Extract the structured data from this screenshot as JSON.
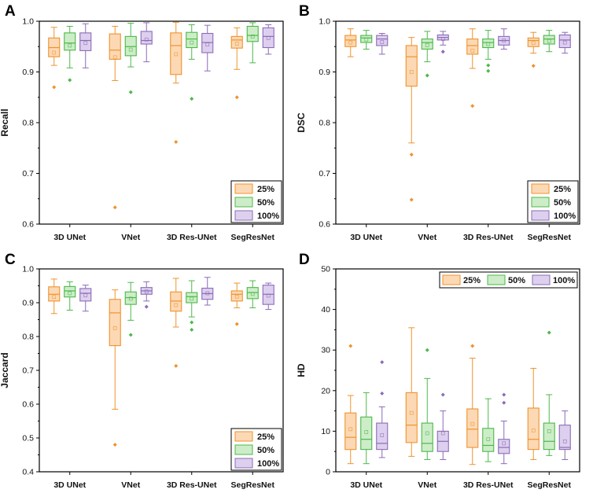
{
  "series_colors": {
    "25%": {
      "stroke": "#F0922E",
      "fill": "#FCD9B4"
    },
    "50%": {
      "stroke": "#4CB84A",
      "fill": "#CDEDC8"
    },
    "100%": {
      "stroke": "#8C6BB8",
      "fill": "#DDD0EE"
    }
  },
  "chart_data": [
    {
      "panel": "A",
      "type": "box",
      "ylabel": "Recall",
      "xlabel": "",
      "ylim": [
        0.6,
        1.0
      ],
      "yticks": [
        0.6,
        0.7,
        0.8,
        0.9,
        1.0
      ],
      "tick_format": "1",
      "categories": [
        "3D UNet",
        "VNet",
        "3D Res-UNet",
        "SegResNet"
      ],
      "legend_position": "bottom-right",
      "legend_layout": "vertical",
      "series": [
        {
          "name": "25%",
          "boxes": [
            {
              "min": 0.913,
              "q1": 0.93,
              "median": 0.948,
              "q3": 0.967,
              "max": 0.988,
              "mean": 0.938,
              "outliers": [
                0.87
              ]
            },
            {
              "min": 0.883,
              "q1": 0.925,
              "median": 0.943,
              "q3": 0.975,
              "max": 0.99,
              "mean": 0.929,
              "outliers": [
                0.633
              ]
            },
            {
              "min": 0.878,
              "q1": 0.895,
              "median": 0.952,
              "q3": 0.977,
              "max": 0.998,
              "mean": 0.935,
              "outliers": [
                0.762
              ]
            },
            {
              "min": 0.905,
              "q1": 0.947,
              "median": 0.963,
              "q3": 0.97,
              "max": 0.987,
              "mean": 0.956,
              "outliers": [
                0.85
              ]
            }
          ]
        },
        {
          "name": "50%",
          "boxes": [
            {
              "min": 0.908,
              "q1": 0.943,
              "median": 0.957,
              "q3": 0.977,
              "max": 0.99,
              "mean": 0.952,
              "outliers": [
                0.884
              ]
            },
            {
              "min": 0.91,
              "q1": 0.932,
              "median": 0.95,
              "q3": 0.97,
              "max": 0.996,
              "mean": 0.944,
              "outliers": [
                0.86
              ]
            },
            {
              "min": 0.925,
              "q1": 0.948,
              "median": 0.965,
              "q3": 0.978,
              "max": 0.993,
              "mean": 0.958,
              "outliers": [
                0.847
              ]
            },
            {
              "min": 0.918,
              "q1": 0.96,
              "median": 0.972,
              "q3": 0.99,
              "max": 0.997,
              "mean": 0.97,
              "outliers": []
            }
          ]
        },
        {
          "name": "100%",
          "boxes": [
            {
              "min": 0.908,
              "q1": 0.942,
              "median": 0.962,
              "q3": 0.977,
              "max": 0.995,
              "mean": 0.957,
              "outliers": []
            },
            {
              "min": 0.92,
              "q1": 0.955,
              "median": 0.962,
              "q3": 0.98,
              "max": 0.997,
              "mean": 0.964,
              "outliers": []
            },
            {
              "min": 0.902,
              "q1": 0.938,
              "median": 0.958,
              "q3": 0.976,
              "max": 0.992,
              "mean": 0.954,
              "outliers": []
            },
            {
              "min": 0.935,
              "q1": 0.948,
              "median": 0.97,
              "q3": 0.987,
              "max": 0.993,
              "mean": 0.967,
              "outliers": []
            }
          ]
        }
      ]
    },
    {
      "panel": "B",
      "type": "box",
      "ylabel": "DSC",
      "xlabel": "",
      "ylim": [
        0.6,
        1.0
      ],
      "yticks": [
        0.6,
        0.7,
        0.8,
        0.9,
        1.0
      ],
      "tick_format": "1",
      "categories": [
        "3D UNet",
        "VNet",
        "3D Res-UNet",
        "SegResNet"
      ],
      "legend_position": "bottom-right",
      "legend_layout": "vertical",
      "series": [
        {
          "name": "25%",
          "boxes": [
            {
              "min": 0.93,
              "q1": 0.95,
              "median": 0.963,
              "q3": 0.972,
              "max": 0.985,
              "mean": 0.958,
              "outliers": []
            },
            {
              "min": 0.76,
              "q1": 0.872,
              "median": 0.93,
              "q3": 0.952,
              "max": 0.968,
              "mean": 0.9,
              "outliers": [
                0.737,
                0.648
              ]
            },
            {
              "min": 0.907,
              "q1": 0.935,
              "median": 0.952,
              "q3": 0.965,
              "max": 0.985,
              "mean": 0.942,
              "outliers": [
                0.833
              ]
            },
            {
              "min": 0.937,
              "q1": 0.95,
              "median": 0.962,
              "q3": 0.967,
              "max": 0.978,
              "mean": 0.957,
              "outliers": [
                0.912
              ]
            }
          ]
        },
        {
          "name": "50%",
          "boxes": [
            {
              "min": 0.945,
              "q1": 0.958,
              "median": 0.967,
              "q3": 0.972,
              "max": 0.982,
              "mean": 0.964,
              "outliers": []
            },
            {
              "min": 0.92,
              "q1": 0.945,
              "median": 0.958,
              "q3": 0.965,
              "max": 0.98,
              "mean": 0.953,
              "outliers": [
                0.893
              ]
            },
            {
              "min": 0.925,
              "q1": 0.948,
              "median": 0.958,
              "q3": 0.965,
              "max": 0.982,
              "mean": 0.955,
              "outliers": [
                0.913,
                0.902
              ]
            },
            {
              "min": 0.94,
              "q1": 0.955,
              "median": 0.965,
              "q3": 0.972,
              "max": 0.982,
              "mean": 0.961,
              "outliers": []
            }
          ]
        },
        {
          "name": "100%",
          "boxes": [
            {
              "min": 0.935,
              "q1": 0.952,
              "median": 0.965,
              "q3": 0.972,
              "max": 0.976,
              "mean": 0.959,
              "outliers": []
            },
            {
              "min": 0.953,
              "q1": 0.963,
              "median": 0.968,
              "q3": 0.973,
              "max": 0.98,
              "mean": 0.965,
              "outliers": [
                0.94
              ]
            },
            {
              "min": 0.945,
              "q1": 0.953,
              "median": 0.962,
              "q3": 0.97,
              "max": 0.985,
              "mean": 0.962,
              "outliers": []
            },
            {
              "min": 0.937,
              "q1": 0.948,
              "median": 0.963,
              "q3": 0.973,
              "max": 0.978,
              "mean": 0.958,
              "outliers": []
            }
          ]
        }
      ]
    },
    {
      "panel": "C",
      "type": "box",
      "ylabel": "Jaccard",
      "xlabel": "",
      "ylim": [
        0.4,
        1.0
      ],
      "yticks": [
        0.4,
        0.5,
        0.6,
        0.7,
        0.8,
        0.9,
        1.0
      ],
      "tick_format": "1",
      "categories": [
        "3D UNet",
        "VNet",
        "3D Res-UNet",
        "SegResNet"
      ],
      "legend_position": "bottom-right",
      "legend_layout": "vertical",
      "series": [
        {
          "name": "25%",
          "boxes": [
            {
              "min": 0.868,
              "q1": 0.905,
              "median": 0.925,
              "q3": 0.947,
              "max": 0.97,
              "mean": 0.917,
              "outliers": []
            },
            {
              "min": 0.585,
              "q1": 0.773,
              "median": 0.87,
              "q3": 0.91,
              "max": 0.938,
              "mean": 0.825,
              "outliers": [
                0.48
              ]
            },
            {
              "min": 0.828,
              "q1": 0.875,
              "median": 0.905,
              "q3": 0.932,
              "max": 0.972,
              "mean": 0.893,
              "outliers": [
                0.713
              ]
            },
            {
              "min": 0.885,
              "q1": 0.905,
              "median": 0.925,
              "q3": 0.935,
              "max": 0.958,
              "mean": 0.918,
              "outliers": [
                0.837
              ]
            }
          ]
        },
        {
          "name": "50%",
          "boxes": [
            {
              "min": 0.878,
              "q1": 0.917,
              "median": 0.935,
              "q3": 0.948,
              "max": 0.962,
              "mean": 0.928,
              "outliers": []
            },
            {
              "min": 0.848,
              "q1": 0.895,
              "median": 0.915,
              "q3": 0.932,
              "max": 0.96,
              "mean": 0.912,
              "outliers": [
                0.805
              ]
            },
            {
              "min": 0.858,
              "q1": 0.9,
              "median": 0.918,
              "q3": 0.93,
              "max": 0.965,
              "mean": 0.912,
              "outliers": [
                0.842,
                0.82
              ]
            },
            {
              "min": 0.885,
              "q1": 0.912,
              "median": 0.93,
              "q3": 0.945,
              "max": 0.965,
              "mean": 0.926,
              "outliers": []
            }
          ]
        },
        {
          "name": "100%",
          "boxes": [
            {
              "min": 0.875,
              "q1": 0.905,
              "median": 0.928,
              "q3": 0.942,
              "max": 0.952,
              "mean": 0.922,
              "outliers": []
            },
            {
              "min": 0.905,
              "q1": 0.925,
              "median": 0.935,
              "q3": 0.945,
              "max": 0.962,
              "mean": 0.933,
              "outliers": [
                0.888
              ]
            },
            {
              "min": 0.893,
              "q1": 0.91,
              "median": 0.927,
              "q3": 0.943,
              "max": 0.975,
              "mean": 0.928,
              "outliers": []
            },
            {
              "min": 0.88,
              "q1": 0.895,
              "median": 0.925,
              "q3": 0.952,
              "max": 0.958,
              "mean": 0.921,
              "outliers": []
            }
          ]
        }
      ]
    },
    {
      "panel": "D",
      "type": "box",
      "ylabel": "HD",
      "xlabel": "",
      "ylim": [
        0,
        50
      ],
      "yticks": [
        0,
        10,
        20,
        30,
        40,
        50
      ],
      "tick_format": "0",
      "categories": [
        "3D UNet",
        "VNet",
        "3D Res-UNet",
        "SegResNet"
      ],
      "legend_position": "top",
      "legend_layout": "horizontal",
      "series": [
        {
          "name": "25%",
          "boxes": [
            {
              "min": 2.0,
              "q1": 5.5,
              "median": 8.5,
              "q3": 14.5,
              "max": 18.8,
              "mean": 10.5,
              "outliers": [
                31.0
              ]
            },
            {
              "min": 3.8,
              "q1": 7.2,
              "median": 11.5,
              "q3": 19.5,
              "max": 35.5,
              "mean": 14.5,
              "outliers": []
            },
            {
              "min": 1.8,
              "q1": 6.0,
              "median": 10.5,
              "q3": 15.5,
              "max": 28.0,
              "mean": 11.8,
              "outliers": [
                31.0
              ]
            },
            {
              "min": 3.0,
              "q1": 5.5,
              "median": 8.0,
              "q3": 15.7,
              "max": 25.5,
              "mean": 10.2,
              "outliers": []
            }
          ]
        },
        {
          "name": "50%",
          "boxes": [
            {
              "min": 2.0,
              "q1": 5.5,
              "median": 8.0,
              "q3": 13.5,
              "max": 19.5,
              "mean": 9.8,
              "outliers": []
            },
            {
              "min": 3.0,
              "q1": 5.0,
              "median": 7.0,
              "q3": 12.0,
              "max": 23.0,
              "mean": 9.5,
              "outliers": [
                30.0
              ]
            },
            {
              "min": 2.5,
              "q1": 5.0,
              "median": 6.5,
              "q3": 10.7,
              "max": 18.0,
              "mean": 8.0,
              "outliers": []
            },
            {
              "min": 4.0,
              "q1": 5.5,
              "median": 7.5,
              "q3": 12.0,
              "max": 19.0,
              "mean": 10.0,
              "outliers": [
                34.3
              ]
            }
          ]
        },
        {
          "name": "100%",
          "boxes": [
            {
              "min": 3.5,
              "q1": 5.5,
              "median": 7.0,
              "q3": 12.0,
              "max": 16.0,
              "mean": 9.0,
              "outliers": [
                27.0,
                19.3
              ]
            },
            {
              "min": 3.0,
              "q1": 5.0,
              "median": 7.5,
              "q3": 10.0,
              "max": 15.0,
              "mean": 9.5,
              "outliers": [
                19.0
              ]
            },
            {
              "min": 2.0,
              "q1": 4.5,
              "median": 6.0,
              "q3": 8.0,
              "max": 12.5,
              "mean": 7.0,
              "outliers": [
                19.0,
                17.0
              ]
            },
            {
              "min": 3.0,
              "q1": 5.5,
              "median": 6.0,
              "q3": 11.5,
              "max": 15.0,
              "mean": 7.5,
              "outliers": []
            }
          ]
        }
      ]
    }
  ]
}
